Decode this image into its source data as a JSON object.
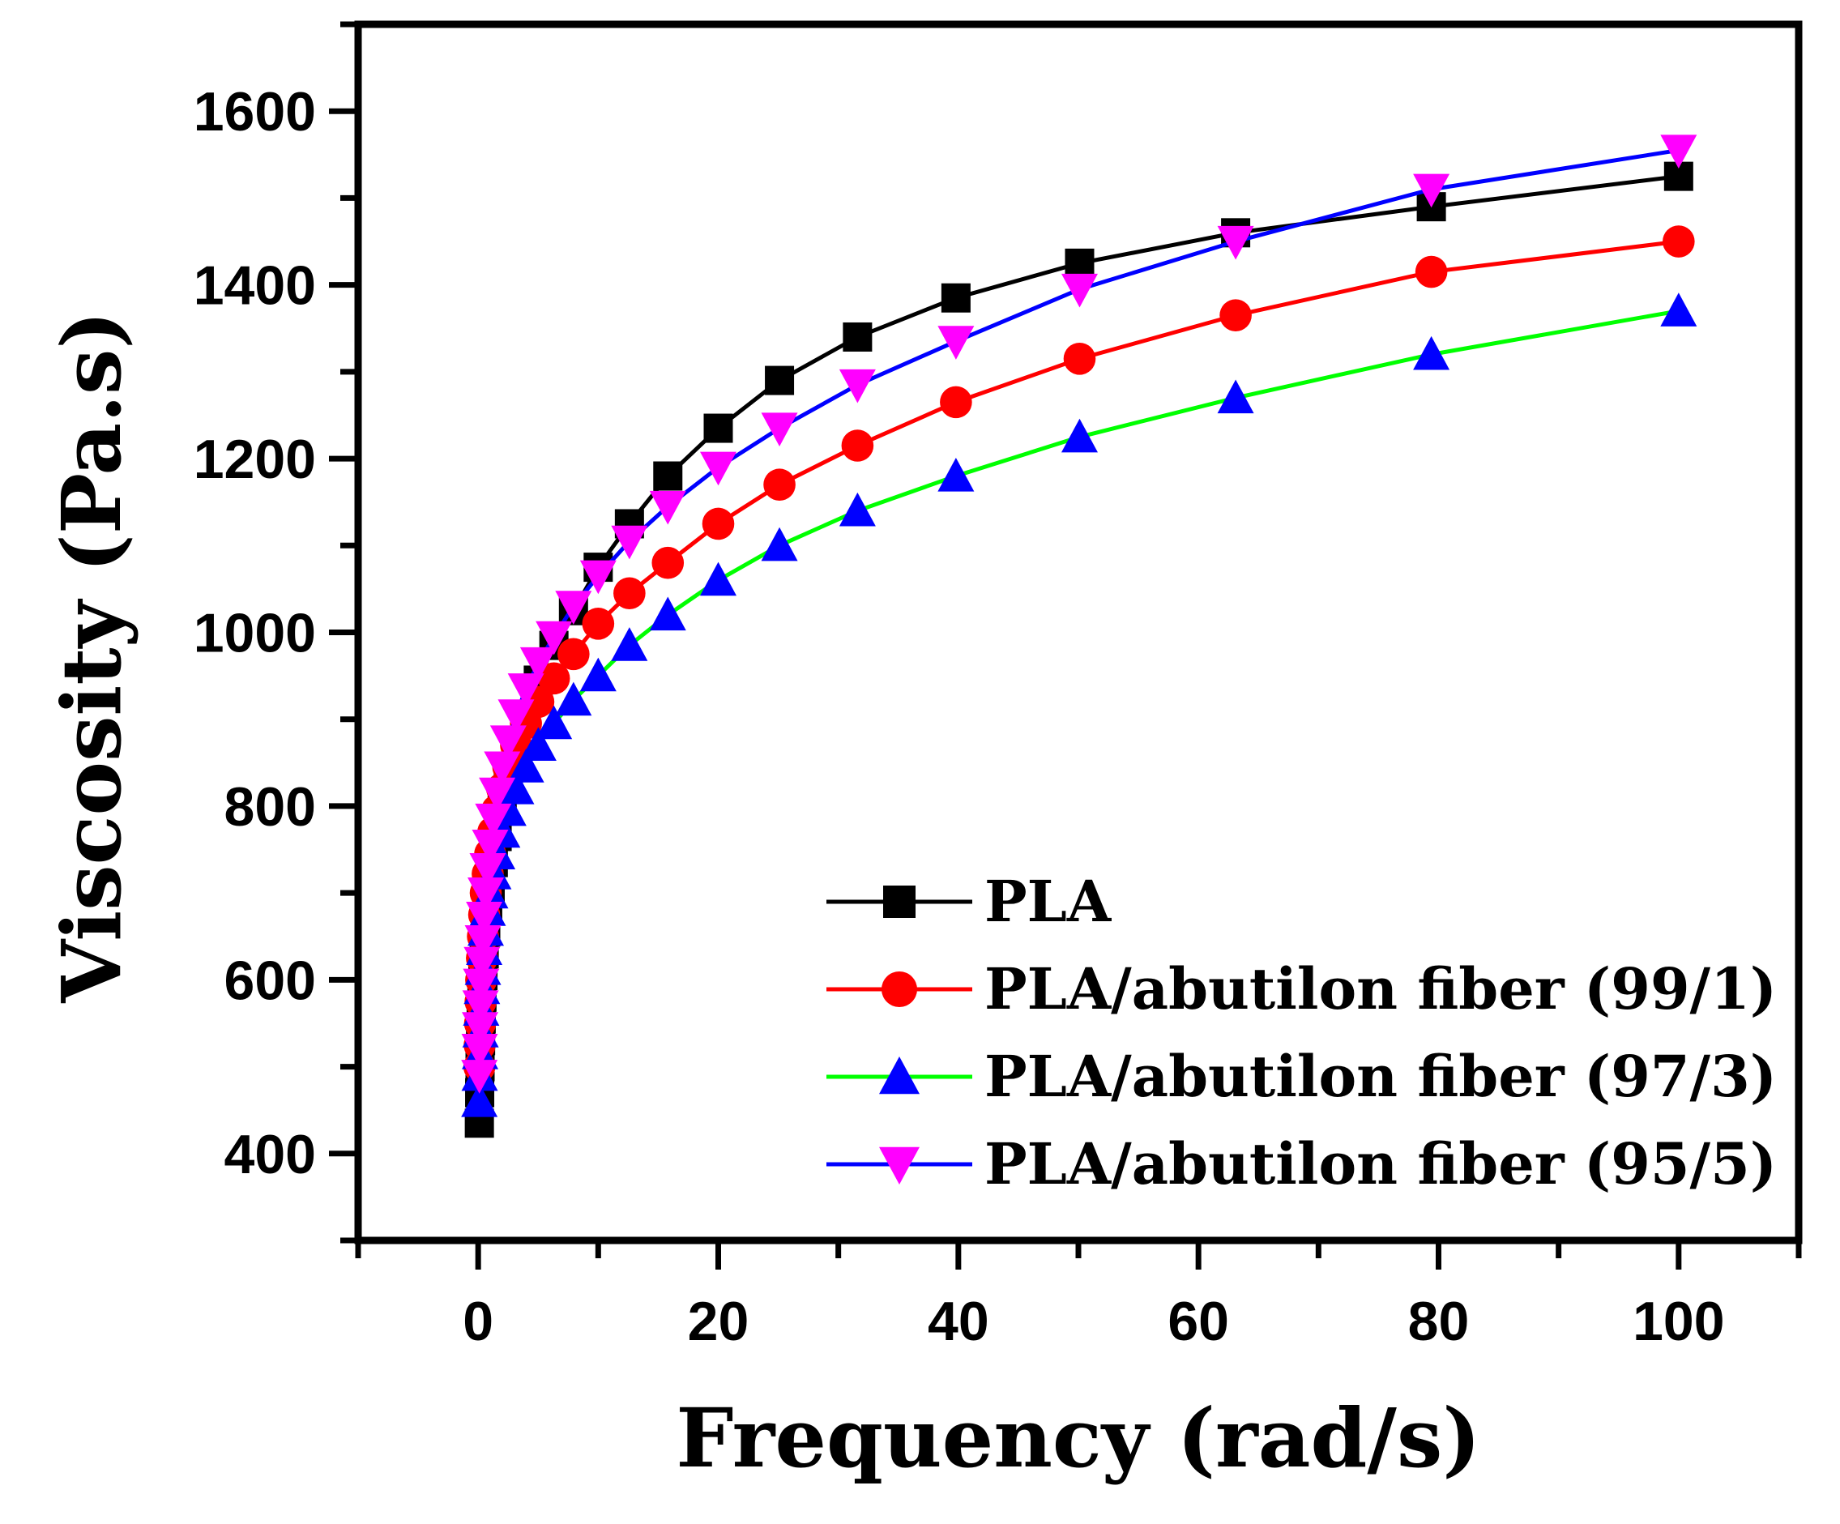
{
  "chart_data": {
    "type": "line",
    "title": "",
    "xlabel": "Frequency (rad/s)",
    "ylabel": "Viscosity (Pa.s)",
    "xlim": [
      -10,
      110
    ],
    "ylim": [
      300,
      1700
    ],
    "xticks": [
      0,
      20,
      40,
      60,
      80,
      100
    ],
    "xtick_labels": [
      "0",
      "20",
      "40",
      "60",
      "80",
      "100"
    ],
    "yticks": [
      400,
      600,
      800,
      1000,
      1200,
      1400,
      1600
    ],
    "ytick_labels": [
      "400",
      "600",
      "800",
      "1000",
      "1200",
      "1400",
      "1600"
    ],
    "legend_position": "bottom-right",
    "x": [
      0.1,
      0.126,
      0.158,
      0.2,
      0.251,
      0.316,
      0.398,
      0.501,
      0.631,
      0.794,
      1.0,
      1.26,
      1.58,
      2.0,
      2.51,
      3.16,
      3.98,
      5.01,
      6.31,
      7.94,
      10.0,
      12.6,
      15.8,
      20.0,
      25.1,
      31.6,
      39.8,
      50.1,
      63.1,
      79.4,
      100.0
    ],
    "series": [
      {
        "name": "PLA",
        "line_color": "#000000",
        "marker_color": "#000000",
        "marker": "square",
        "values": [
          435,
          470,
          500,
          530,
          555,
          580,
          605,
          630,
          655,
          680,
          705,
          735,
          765,
          795,
          830,
          865,
          905,
          945,
          985,
          1025,
          1075,
          1125,
          1180,
          1235,
          1290,
          1340,
          1385,
          1425,
          1460,
          1490,
          1525
        ]
      },
      {
        "name": "PLA/abutilon fiber (99/1)",
        "line_color": "#ff0000",
        "marker_color": "#ff0000",
        "marker": "circle",
        "values": [
          500,
          525,
          550,
          575,
          600,
          625,
          650,
          675,
          700,
          722,
          745,
          770,
          795,
          820,
          845,
          870,
          895,
          920,
          947,
          975,
          1010,
          1045,
          1080,
          1125,
          1170,
          1215,
          1265,
          1315,
          1365,
          1415,
          1450
        ]
      },
      {
        "name": "PLA/abutilon fiber (97/3)",
        "line_color": "#00ff00",
        "marker_color": "#0000ff",
        "marker": "triangle-up",
        "values": [
          460,
          490,
          515,
          540,
          565,
          590,
          612,
          635,
          657,
          680,
          700,
          722,
          745,
          770,
          795,
          820,
          845,
          870,
          895,
          922,
          950,
          985,
          1020,
          1060,
          1100,
          1140,
          1180,
          1225,
          1270,
          1320,
          1370
        ]
      },
      {
        "name": "PLA/abutilon fiber (95/5)",
        "line_color": "#0000ff",
        "marker_color": "#ff00ff",
        "marker": "triangle-down",
        "values": [
          490,
          520,
          545,
          570,
          595,
          620,
          645,
          672,
          700,
          728,
          755,
          785,
          815,
          845,
          875,
          905,
          935,
          965,
          995,
          1030,
          1065,
          1105,
          1145,
          1190,
          1235,
          1285,
          1335,
          1395,
          1450,
          1510,
          1555
        ]
      }
    ]
  }
}
